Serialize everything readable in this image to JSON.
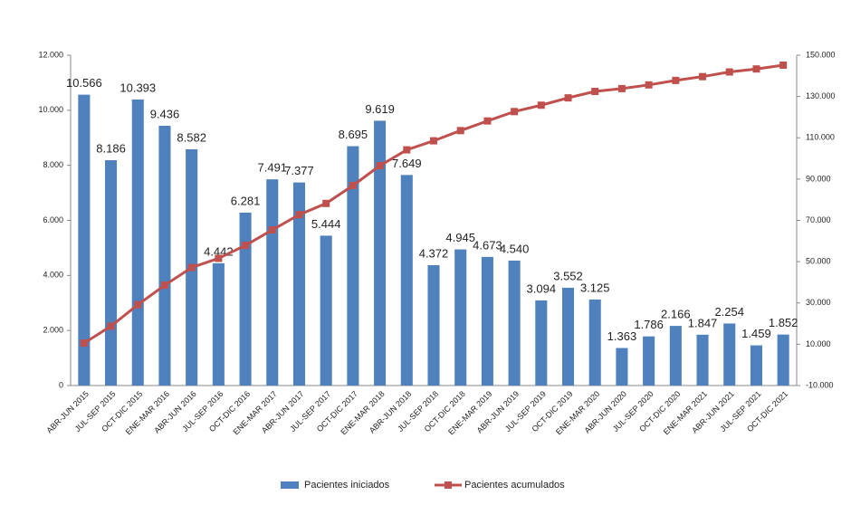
{
  "chart_data": {
    "type": "bar-line",
    "categories": [
      "ABR-JUN 2015",
      "JUL-SEP 2015",
      "OCT-DIC 2015",
      "ENE-MAR 2016",
      "ABR-JUN 2016",
      "JUL-SEP 2016",
      "OCT-DIC 2016",
      "ENE-MAR 2017",
      "ABR-JUN 2017",
      "JUL-SEP 2017",
      "OCT-DIC 2017",
      "ENE-MAR 2018",
      "ABR-JUN 2018",
      "JUL-SEP 2018",
      "OCT-DIC 2018",
      "ENE-MAR 2019",
      "ABR-JUN 2019",
      "JUL-SEP 2019",
      "OCT-DIC 2019",
      "ENE-MAR 2020",
      "ABR-JUN 2020",
      "JUL-SEP 2020",
      "OCT-DIC 2020",
      "ENE-MAR 2021",
      "ABR-JUN 2021",
      "JUL-SEP 2021",
      "OCT-DIC 2021"
    ],
    "series": [
      {
        "name": "Pacientes iniciados",
        "type": "bar",
        "color": "#4f81bd",
        "values": [
          10566,
          8186,
          10393,
          9436,
          8582,
          4442,
          6281,
          7491,
          7377,
          5444,
          8695,
          9619,
          7649,
          4372,
          4945,
          4673,
          4540,
          3094,
          3552,
          3125,
          1363,
          1786,
          2166,
          1847,
          2254,
          1459,
          1852
        ],
        "value_labels": [
          "10.566",
          "8.186",
          "10.393",
          "9.436",
          "8.582",
          "4.442",
          "6.281",
          "7.491",
          "7.377",
          "5.444",
          "8.695",
          "9.619",
          "7.649",
          "4.372",
          "4.945",
          "4.673",
          "4.540",
          "3.094",
          "3.552",
          "3.125",
          "1.363",
          "1.786",
          "2.166",
          "1.847",
          "2.254",
          "1.459",
          "1.852"
        ]
      },
      {
        "name": "Pacientes acumulados",
        "type": "line",
        "axis": "y2",
        "color": "#c0504d",
        "values": [
          10566,
          18752,
          29145,
          38581,
          47163,
          51605,
          57886,
          65377,
          72754,
          78198,
          86893,
          96512,
          104161,
          108533,
          113478,
          118151,
          122691,
          125785,
          129337,
          132462,
          133825,
          135611,
          137777,
          139624,
          141878,
          143337,
          145189
        ]
      }
    ],
    "ylim": [
      0,
      12000
    ],
    "yticks": [
      0,
      {
        "value": 2000,
        "label": "2.000"
      },
      {
        "value": 4000,
        "label": "4.000"
      },
      {
        "value": 6000,
        "label": "6.000"
      },
      {
        "value": 8000,
        "label": "8.000"
      },
      {
        "value": 10000,
        "label": "10.000"
      },
      {
        "value": 12000,
        "label": "12.000"
      }
    ],
    "y2lim": [
      -10000,
      150000
    ],
    "y2ticks": [
      {
        "value": -10000,
        "label": "-10.000"
      },
      {
        "value": 10000,
        "label": "10.000"
      },
      {
        "value": 30000,
        "label": "30.000"
      },
      {
        "value": 50000,
        "label": "50.000"
      },
      {
        "value": 70000,
        "label": "70.000"
      },
      {
        "value": 90000,
        "label": "90.000"
      },
      {
        "value": 110000,
        "label": "110.000"
      },
      {
        "value": 130000,
        "label": "130.000"
      },
      {
        "value": 150000,
        "label": "150.000"
      }
    ],
    "legend": "bottom"
  }
}
